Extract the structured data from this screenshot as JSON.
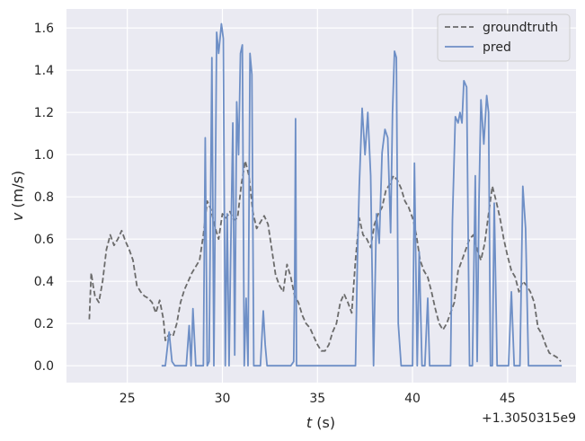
{
  "chart_data": {
    "type": "line",
    "xlabel_var": "t",
    "xlabel_unit": " (s)",
    "ylabel_var": "v",
    "ylabel_unit": " (m/s)",
    "x_offset_label": "+1.3050315e9",
    "xlim": [
      21.8,
      48.6
    ],
    "ylim": [
      -0.08,
      1.69
    ],
    "xticks": [
      25,
      30,
      35,
      40,
      45
    ],
    "yticks": [
      0.0,
      0.2,
      0.4,
      0.6,
      0.8,
      1.0,
      1.2,
      1.4,
      1.6
    ],
    "ytick_labels": [
      "0.0",
      "0.2",
      "0.4",
      "0.6",
      "0.8",
      "1.0",
      "1.2",
      "1.4",
      "1.6"
    ],
    "grid": true,
    "legend_position": "top-right",
    "series": [
      {
        "name": "groundtruth",
        "color": "#6b6b6b",
        "style": "dashed",
        "x": [
          23.0,
          23.1,
          23.2,
          23.3,
          23.5,
          23.7,
          23.9,
          24.1,
          24.3,
          24.5,
          24.7,
          24.9,
          25.1,
          25.3,
          25.5,
          25.7,
          25.9,
          26.1,
          26.3,
          26.5,
          26.7,
          26.9,
          27.0,
          27.2,
          27.4,
          27.6,
          27.8,
          28.0,
          28.2,
          28.4,
          28.6,
          28.8,
          29.0,
          29.2,
          29.4,
          29.6,
          29.8,
          30.0,
          30.2,
          30.4,
          30.6,
          30.8,
          31.0,
          31.2,
          31.4,
          31.6,
          31.8,
          32.0,
          32.2,
          32.4,
          32.6,
          32.8,
          33.0,
          33.2,
          33.4,
          33.6,
          33.8,
          34.0,
          34.2,
          34.4,
          34.6,
          34.8,
          35.0,
          35.2,
          35.4,
          35.6,
          35.8,
          36.0,
          36.2,
          36.4,
          36.6,
          36.8,
          37.0,
          37.2,
          37.4,
          37.6,
          37.8,
          38.0,
          38.2,
          38.4,
          38.6,
          38.8,
          39.0,
          39.2,
          39.4,
          39.6,
          39.8,
          40.0,
          40.2,
          40.4,
          40.6,
          40.8,
          41.0,
          41.2,
          41.4,
          41.6,
          41.8,
          42.0,
          42.2,
          42.4,
          42.6,
          42.8,
          43.0,
          43.2,
          43.4,
          43.6,
          43.8,
          44.0,
          44.2,
          44.4,
          44.6,
          44.8,
          45.0,
          45.2,
          45.4,
          45.6,
          45.8,
          46.0,
          46.2,
          46.4,
          46.6,
          46.8,
          47.0,
          47.2,
          47.4,
          47.6,
          47.8
        ],
        "y": [
          0.22,
          0.44,
          0.38,
          0.33,
          0.3,
          0.4,
          0.55,
          0.62,
          0.57,
          0.6,
          0.64,
          0.59,
          0.55,
          0.5,
          0.38,
          0.35,
          0.33,
          0.32,
          0.3,
          0.25,
          0.31,
          0.22,
          0.12,
          0.15,
          0.14,
          0.2,
          0.3,
          0.36,
          0.4,
          0.44,
          0.47,
          0.5,
          0.62,
          0.78,
          0.74,
          0.66,
          0.6,
          0.72,
          0.7,
          0.73,
          0.69,
          0.7,
          0.86,
          0.97,
          0.9,
          0.73,
          0.65,
          0.68,
          0.71,
          0.67,
          0.55,
          0.43,
          0.38,
          0.35,
          0.48,
          0.42,
          0.33,
          0.3,
          0.24,
          0.2,
          0.18,
          0.14,
          0.1,
          0.07,
          0.07,
          0.1,
          0.16,
          0.2,
          0.3,
          0.34,
          0.3,
          0.25,
          0.5,
          0.7,
          0.62,
          0.6,
          0.56,
          0.67,
          0.72,
          0.75,
          0.83,
          0.86,
          0.9,
          0.88,
          0.84,
          0.78,
          0.75,
          0.7,
          0.62,
          0.5,
          0.45,
          0.42,
          0.35,
          0.27,
          0.2,
          0.17,
          0.2,
          0.25,
          0.3,
          0.45,
          0.5,
          0.55,
          0.6,
          0.62,
          0.55,
          0.5,
          0.58,
          0.72,
          0.85,
          0.78,
          0.7,
          0.6,
          0.52,
          0.45,
          0.42,
          0.35,
          0.4,
          0.38,
          0.35,
          0.3,
          0.18,
          0.15,
          0.1,
          0.06,
          0.05,
          0.04,
          0.02
        ]
      },
      {
        "name": "pred",
        "color": "#6e8fc6",
        "style": "solid",
        "x": [
          26.8,
          27.0,
          27.2,
          27.35,
          27.5,
          27.7,
          27.9,
          28.1,
          28.25,
          28.35,
          28.45,
          28.6,
          28.7,
          28.85,
          29.0,
          29.1,
          29.2,
          29.3,
          29.45,
          29.55,
          29.7,
          29.8,
          29.95,
          30.05,
          30.15,
          30.25,
          30.35,
          30.45,
          30.55,
          30.65,
          30.75,
          30.85,
          30.95,
          31.05,
          31.15,
          31.25,
          31.35,
          31.45,
          31.55,
          31.65,
          31.75,
          31.85,
          32.0,
          32.15,
          32.25,
          32.35,
          32.5,
          32.8,
          33.2,
          33.6,
          33.75,
          33.8,
          33.85,
          33.9,
          34.0,
          34.4,
          35.0,
          35.5,
          36.0,
          36.5,
          37.0,
          37.1,
          37.2,
          37.35,
          37.5,
          37.65,
          37.8,
          37.95,
          38.1,
          38.25,
          38.4,
          38.55,
          38.7,
          38.85,
          38.95,
          39.05,
          39.15,
          39.25,
          39.4,
          39.6,
          39.8,
          40.0,
          40.1,
          40.25,
          40.35,
          40.5,
          40.65,
          40.8,
          40.9,
          41.0,
          41.2,
          41.5,
          41.8,
          42.0,
          42.1,
          42.25,
          42.4,
          42.5,
          42.6,
          42.7,
          42.85,
          43.0,
          43.15,
          43.3,
          43.4,
          43.5,
          43.6,
          43.75,
          43.9,
          44.0,
          44.1,
          44.2,
          44.3,
          44.45,
          44.6,
          44.75,
          44.9,
          45.05,
          45.2,
          45.35,
          45.5,
          45.65,
          45.8,
          45.95,
          46.1,
          46.3,
          46.5,
          46.65,
          46.8,
          46.95,
          47.1,
          47.3,
          47.6,
          47.85
        ],
        "y": [
          0.0,
          0.0,
          0.16,
          0.02,
          0.0,
          0.0,
          0.0,
          0.0,
          0.19,
          0.0,
          0.27,
          0.0,
          0.0,
          0.0,
          0.0,
          1.08,
          0.0,
          0.02,
          1.46,
          0.0,
          1.58,
          1.48,
          1.62,
          1.55,
          0.0,
          0.72,
          0.0,
          0.6,
          1.15,
          0.05,
          1.25,
          1.0,
          1.48,
          1.52,
          0.0,
          0.32,
          0.0,
          1.48,
          1.38,
          0.0,
          0.0,
          0.0,
          0.0,
          0.26,
          0.1,
          0.0,
          0.0,
          0.0,
          0.0,
          0.0,
          0.02,
          0.4,
          1.17,
          0.0,
          0.0,
          0.0,
          0.0,
          0.0,
          0.0,
          0.0,
          0.0,
          0.5,
          0.85,
          1.22,
          1.0,
          1.2,
          0.9,
          0.0,
          0.72,
          0.58,
          1.01,
          1.12,
          1.08,
          0.63,
          1.2,
          1.49,
          1.46,
          0.2,
          0.0,
          0.0,
          0.0,
          0.0,
          0.96,
          0.0,
          0.54,
          0.0,
          0.0,
          0.32,
          0.0,
          0.0,
          0.0,
          0.0,
          0.0,
          0.0,
          0.69,
          1.18,
          1.15,
          1.2,
          1.15,
          1.35,
          1.32,
          0.0,
          0.0,
          0.9,
          0.02,
          0.8,
          1.26,
          1.05,
          1.28,
          1.2,
          0.0,
          0.0,
          0.77,
          0.0,
          0.0,
          0.0,
          0.0,
          0.0,
          0.35,
          0.0,
          0.0,
          0.0,
          0.85,
          0.65,
          0.0,
          0.0,
          0.0,
          0.0,
          0.0,
          0.0,
          0.0,
          0.0,
          0.0,
          0.0
        ]
      }
    ]
  }
}
